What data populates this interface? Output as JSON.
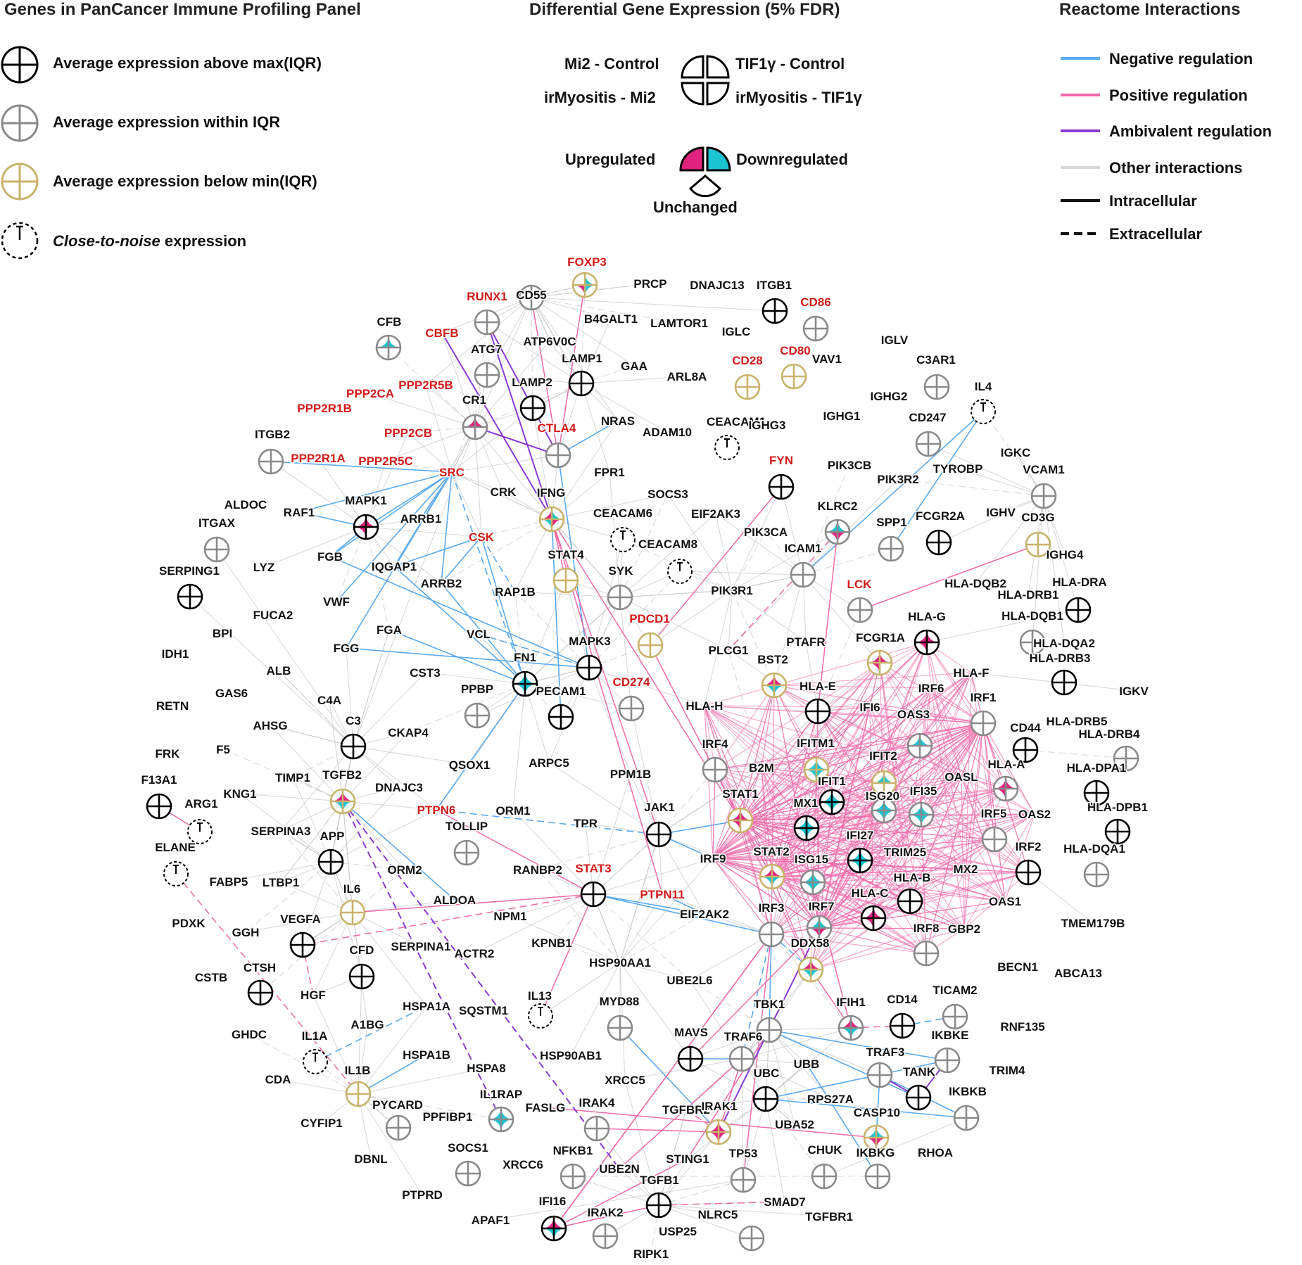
{
  "headers": {
    "left": "Genes in PanCancer Immune Profiling Panel",
    "middle": "Differential Gene Expression (5% FDR)",
    "right": "Reactome Interactions"
  },
  "left_legend": {
    "above": "Average expression above max(IQR)",
    "within": "Average expression within IQR",
    "below": "Average expression below min(IQR)",
    "noise_italic": "Close-to-noise",
    "noise_rest": " expression"
  },
  "mid_legend": {
    "q1": "Mi2 - Control",
    "q2": "TIF1γ - Control",
    "q3": "irMyositis - Mi2",
    "q4": "irMyositis - TIF1γ",
    "up": "Upregulated",
    "down": "Downregulated",
    "unchanged": "Unchanged"
  },
  "right_legend": [
    {
      "label": "Negative regulation",
      "color": "#5aaaf0",
      "dash": false
    },
    {
      "label": "Positive regulation",
      "color": "#f06aa8",
      "dash": false
    },
    {
      "label": "Ambivalent regulation",
      "color": "#8a3ad6",
      "dash": false
    },
    {
      "label": "Other interactions",
      "color": "#d8d8d8",
      "dash": false
    },
    {
      "label": "Intracellular",
      "color": "#111111",
      "dash": false
    },
    {
      "label": "Extracellular",
      "color": "#111111",
      "dash": true
    }
  ],
  "colors": {
    "above": "#000000",
    "within": "#8a8a8a",
    "below": "#c9b26a",
    "up": "#e0237f",
    "down": "#1cc4d2",
    "highlight_label": "#d31a1a"
  },
  "nodes": [
    {
      "label": "FOXP3",
      "red": true
    },
    {
      "label": "CD55"
    },
    {
      "label": "PRCP"
    },
    {
      "label": "DNAJC13"
    },
    {
      "label": "ITGB1"
    },
    {
      "label": "RUNX1",
      "red": true
    },
    {
      "label": "B4GALT1"
    },
    {
      "label": "LAMTOR1"
    },
    {
      "label": "CD86",
      "red": true
    },
    {
      "label": "CFB"
    },
    {
      "label": "CBFB",
      "red": true
    },
    {
      "label": "ATP6V0C"
    },
    {
      "label": "ATG7"
    },
    {
      "label": "IGLC"
    },
    {
      "label": "IGLV"
    },
    {
      "label": "CD80",
      "red": true
    },
    {
      "label": "LAMP1"
    },
    {
      "label": "C3AR1"
    },
    {
      "label": "GAA"
    },
    {
      "label": "ARL8A"
    },
    {
      "label": "CD28",
      "red": true
    },
    {
      "label": "VAV1"
    },
    {
      "label": "PPP2R5B",
      "red": true
    },
    {
      "label": "PPP2CA",
      "red": true
    },
    {
      "label": "LAMP2"
    },
    {
      "label": "IL4"
    },
    {
      "label": "PPP2R1B",
      "red": true
    },
    {
      "label": "CR1"
    },
    {
      "label": "IGHG2"
    },
    {
      "label": "NRAS"
    },
    {
      "label": "CTLA4",
      "red": true
    },
    {
      "label": "ADAM10"
    },
    {
      "label": "CEACAM1"
    },
    {
      "label": "IGHG3"
    },
    {
      "label": "IGHG1"
    },
    {
      "label": "CD247"
    },
    {
      "label": "ITGB2"
    },
    {
      "label": "PPP2CB",
      "red": true
    },
    {
      "label": "PPP2R1A",
      "red": true
    },
    {
      "label": "PPP2R5C",
      "red": true
    },
    {
      "label": "FPR1"
    },
    {
      "label": "FYN",
      "red": true
    },
    {
      "label": "PIK3CB"
    },
    {
      "label": "IGKC"
    },
    {
      "label": "SRC",
      "red": true
    },
    {
      "label": "PIK3R2"
    },
    {
      "label": "TYROBP"
    },
    {
      "label": "VCAM1"
    },
    {
      "label": "CRK"
    },
    {
      "label": "SOCS3"
    },
    {
      "label": "ALDOC"
    },
    {
      "label": "RAF1"
    },
    {
      "label": "MAPK1"
    },
    {
      "label": "IFNG"
    },
    {
      "label": "KLRC2"
    },
    {
      "label": "SPP1"
    },
    {
      "label": "FCGR2A"
    },
    {
      "label": "IGHV"
    },
    {
      "label": "CD3G"
    },
    {
      "label": "ARRB1"
    },
    {
      "label": "CEACAM6"
    },
    {
      "label": "EIF2AK3"
    },
    {
      "label": "ITGAX"
    },
    {
      "label": "CSK",
      "red": true
    },
    {
      "label": "CEACAM8"
    },
    {
      "label": "PIK3CA"
    },
    {
      "label": "ICAM1"
    },
    {
      "label": "IGHG4"
    },
    {
      "label": "LYZ"
    },
    {
      "label": "FGB"
    },
    {
      "label": "IQGAP1"
    },
    {
      "label": "STAT4"
    },
    {
      "label": "SERPING1"
    },
    {
      "label": "SYK"
    },
    {
      "label": "ARRB2"
    },
    {
      "label": "RAP1B"
    },
    {
      "label": "PIK3R1"
    },
    {
      "label": "LCK",
      "red": true
    },
    {
      "label": "HLA-DQB2"
    },
    {
      "label": "HLA-DRA"
    },
    {
      "label": "HLA-DRB1"
    },
    {
      "label": "VWF"
    },
    {
      "label": "FUCA2"
    },
    {
      "label": "PDCD1",
      "red": true
    },
    {
      "label": "HLA-G"
    },
    {
      "label": "HLA-DQB1"
    },
    {
      "label": "BPI"
    },
    {
      "label": "FGA"
    },
    {
      "label": "VCL"
    },
    {
      "label": "MAPK3"
    },
    {
      "label": "PTAFR"
    },
    {
      "label": "FCGR1A"
    },
    {
      "label": "HLA-DQA2"
    },
    {
      "label": "IDH1"
    },
    {
      "label": "FGG"
    },
    {
      "label": "FN1"
    },
    {
      "label": "PLCG1"
    },
    {
      "label": "BST2"
    },
    {
      "label": "HLA-DRB3"
    },
    {
      "label": "ALB"
    },
    {
      "label": "CST3"
    },
    {
      "label": "HLA-F"
    },
    {
      "label": "GAS6"
    },
    {
      "label": "PPBP"
    },
    {
      "label": "PECAM1"
    },
    {
      "label": "CD274",
      "red": true
    },
    {
      "label": "HLA-E"
    },
    {
      "label": "IRF6"
    },
    {
      "label": "IGKV"
    },
    {
      "label": "RETN"
    },
    {
      "label": "C4A"
    },
    {
      "label": "HLA-H"
    },
    {
      "label": "IFI6"
    },
    {
      "label": "OAS3"
    },
    {
      "label": "IRF1"
    },
    {
      "label": "HLA-DRB5"
    },
    {
      "label": "AHSG"
    },
    {
      "label": "C3"
    },
    {
      "label": "CKAP4"
    },
    {
      "label": "CD44"
    },
    {
      "label": "HLA-DRB4"
    },
    {
      "label": "FRK"
    },
    {
      "label": "F5"
    },
    {
      "label": "IRF4"
    },
    {
      "label": "IFITM1"
    },
    {
      "label": "IFIT2"
    },
    {
      "label": "QSOX1"
    },
    {
      "label": "ARPC5"
    },
    {
      "label": "B2M"
    },
    {
      "label": "HLA-A"
    },
    {
      "label": "OASL"
    },
    {
      "label": "HLA-DPA1"
    },
    {
      "label": "F13A1"
    },
    {
      "label": "TIMP1"
    },
    {
      "label": "TGFB2"
    },
    {
      "label": "DNAJC3"
    },
    {
      "label": "PPM1B"
    },
    {
      "label": "IFIT1"
    },
    {
      "label": "ISG20"
    },
    {
      "label": "IFI35"
    },
    {
      "label": "KNG1"
    },
    {
      "label": "ARG1"
    },
    {
      "label": "STAT1"
    },
    {
      "label": "MX1"
    },
    {
      "label": "HLA-DPB1"
    },
    {
      "label": "PTPN6",
      "red": true
    },
    {
      "label": "ORM1"
    },
    {
      "label": "JAK1"
    },
    {
      "label": "IRF5"
    },
    {
      "label": "OAS2"
    },
    {
      "label": "SERPINA3"
    },
    {
      "label": "TOLLIP"
    },
    {
      "label": "TPR"
    },
    {
      "label": "ELANE"
    },
    {
      "label": "APP"
    },
    {
      "label": "IFI27"
    },
    {
      "label": "TRIM25"
    },
    {
      "label": "IRF2"
    },
    {
      "label": "HLA-DQA1"
    },
    {
      "label": "ORM2"
    },
    {
      "label": "IRF9"
    },
    {
      "label": "STAT2"
    },
    {
      "label": "HLA-B"
    },
    {
      "label": "FABP5"
    },
    {
      "label": "LTBP1"
    },
    {
      "label": "RANBP2"
    },
    {
      "label": "STAT3",
      "red": true
    },
    {
      "label": "ISG15"
    },
    {
      "label": "MX2"
    },
    {
      "label": "IL6"
    },
    {
      "label": "PTPN11",
      "red": true
    },
    {
      "label": "HLA-C"
    },
    {
      "label": "ALDOA"
    },
    {
      "label": "OAS1"
    },
    {
      "label": "PDXK"
    },
    {
      "label": "NPM1"
    },
    {
      "label": "EIF2AK2"
    },
    {
      "label": "IRF3"
    },
    {
      "label": "IRF7"
    },
    {
      "label": "VEGFA"
    },
    {
      "label": "TMEM179B"
    },
    {
      "label": "GGH"
    },
    {
      "label": "KPNB1"
    },
    {
      "label": "IRF8"
    },
    {
      "label": "GBP2"
    },
    {
      "label": "DDX58"
    },
    {
      "label": "CFD"
    },
    {
      "label": "SERPINA1"
    },
    {
      "label": "CTSH"
    },
    {
      "label": "ACTR2"
    },
    {
      "label": "HSP90AA1"
    },
    {
      "label": "CSTB"
    },
    {
      "label": "BECN1"
    },
    {
      "label": "ABCA13"
    },
    {
      "label": "UBE2L6"
    },
    {
      "label": "HGF"
    },
    {
      "label": "TICAM2"
    },
    {
      "label": "IL13"
    },
    {
      "label": "MYD88"
    },
    {
      "label": "HSPA1A"
    },
    {
      "label": "SQSTM1"
    },
    {
      "label": "IFIH1"
    },
    {
      "label": "CD14"
    },
    {
      "label": "TBK1"
    },
    {
      "label": "GHDC"
    },
    {
      "label": "A1BG"
    },
    {
      "label": "RNF135"
    },
    {
      "label": "IL1A"
    },
    {
      "label": "MAVS"
    },
    {
      "label": "TRAF6"
    },
    {
      "label": "HSPA1B"
    },
    {
      "label": "TRAF3"
    },
    {
      "label": "IKBKE"
    },
    {
      "label": "HSP90AB1"
    },
    {
      "label": "HSPA8"
    },
    {
      "label": "UBB"
    },
    {
      "label": "CDA"
    },
    {
      "label": "TANK"
    },
    {
      "label": "TRIM4"
    },
    {
      "label": "IL1B"
    },
    {
      "label": "XRCC5"
    },
    {
      "label": "UBC"
    },
    {
      "label": "IL1RAP"
    },
    {
      "label": "IKBKB"
    },
    {
      "label": "CYFIP1"
    },
    {
      "label": "RPS27A"
    },
    {
      "label": "PYCARD"
    },
    {
      "label": "IRAK4"
    },
    {
      "label": "FASLG"
    },
    {
      "label": "CASP10"
    },
    {
      "label": "TGFBR2"
    },
    {
      "label": "IRAK1"
    },
    {
      "label": "PPFIBP1"
    },
    {
      "label": "UBA52"
    },
    {
      "label": "DBNL"
    },
    {
      "label": "CHUK"
    },
    {
      "label": "RHOA"
    },
    {
      "label": "SOCS1"
    },
    {
      "label": "NFKB1"
    },
    {
      "label": "IKBKG"
    },
    {
      "label": "STING1"
    },
    {
      "label": "XRCC6"
    },
    {
      "label": "UBE2N"
    },
    {
      "label": "TP53"
    },
    {
      "label": "TGFB1"
    },
    {
      "label": "PTPRD"
    },
    {
      "label": "SMAD7"
    },
    {
      "label": "IFI16"
    },
    {
      "label": "IRAK2"
    },
    {
      "label": "NLRC5"
    },
    {
      "label": "TGFBR1"
    },
    {
      "label": "APAF1"
    },
    {
      "label": "USP25"
    },
    {
      "label": "RIPK1"
    }
  ]
}
